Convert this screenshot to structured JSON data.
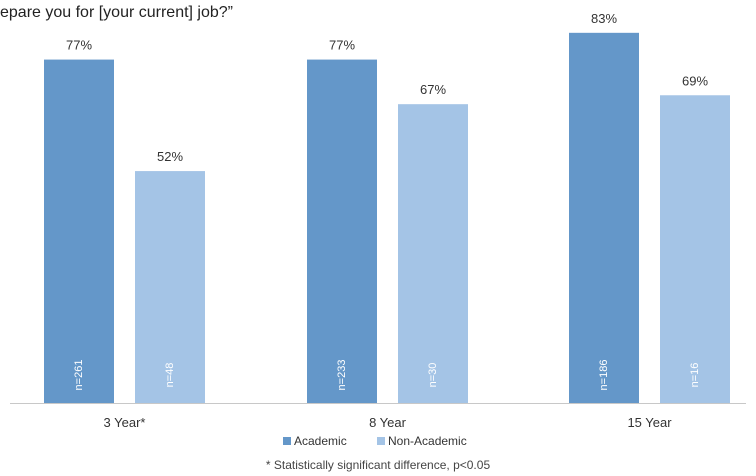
{
  "title": "epare you for [your current] job?”",
  "footnote": "* Statistically significant difference, p<0.05",
  "colors": {
    "academic": "#6497c9",
    "non_academic": "#a4c4e6",
    "axis": "#c8c8c8"
  },
  "chart_data": {
    "type": "bar",
    "title": "epare you for [your current] job?”",
    "categories": [
      "3 Year*",
      "8 Year",
      "15 Year"
    ],
    "series": [
      {
        "name": "Academic",
        "values": [
          77,
          77,
          83
        ],
        "value_labels": [
          "77%",
          "77%",
          "83%"
        ],
        "n_labels": [
          "n=261",
          "n=233",
          "n=186"
        ]
      },
      {
        "name": "Non-Academic",
        "values": [
          52,
          67,
          69
        ],
        "value_labels": [
          "52%",
          "67%",
          "69%"
        ],
        "n_labels": [
          "n=48",
          "n=30",
          "n=16"
        ]
      }
    ],
    "ylim": [
      0,
      100
    ],
    "grid": false,
    "legend": "bottom-center",
    "xlabel": "",
    "ylabel": ""
  }
}
